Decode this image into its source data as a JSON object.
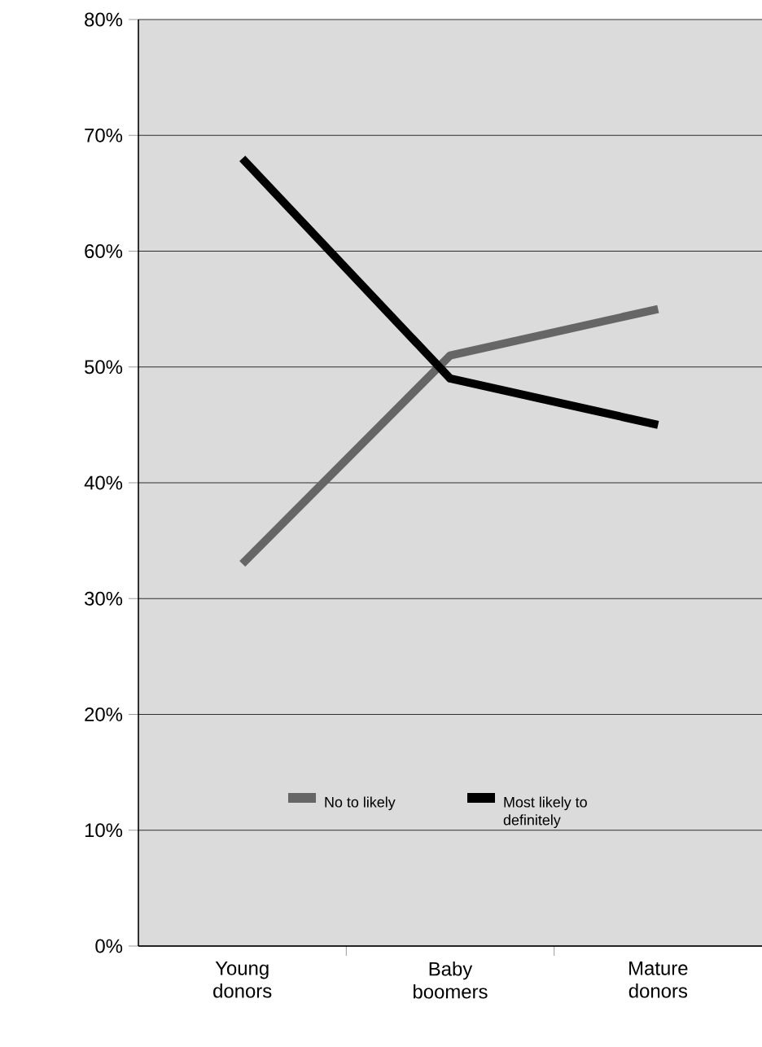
{
  "chart_data": {
    "type": "line",
    "categories": [
      "Young donors",
      "Baby boomers",
      "Mature donors"
    ],
    "series": [
      {
        "name": "No to likely",
        "color": "#666666",
        "values": [
          33,
          51,
          55
        ]
      },
      {
        "name": "Most likely to definitely",
        "color": "#000000",
        "values": [
          68,
          49,
          45
        ]
      }
    ],
    "ylim": [
      0,
      80
    ],
    "yticks": [
      {
        "value": 0,
        "label": "0%"
      },
      {
        "value": 10,
        "label": "10%"
      },
      {
        "value": 20,
        "label": "20%"
      },
      {
        "value": 30,
        "label": "30%"
      },
      {
        "value": 40,
        "label": "40%"
      },
      {
        "value": 50,
        "label": "50%"
      },
      {
        "value": 60,
        "label": "60%"
      },
      {
        "value": 70,
        "label": "70%"
      },
      {
        "value": 80,
        "label": "80%"
      }
    ],
    "grid": "y",
    "legend": "bottom",
    "marker": "none",
    "line_style": "solid"
  }
}
